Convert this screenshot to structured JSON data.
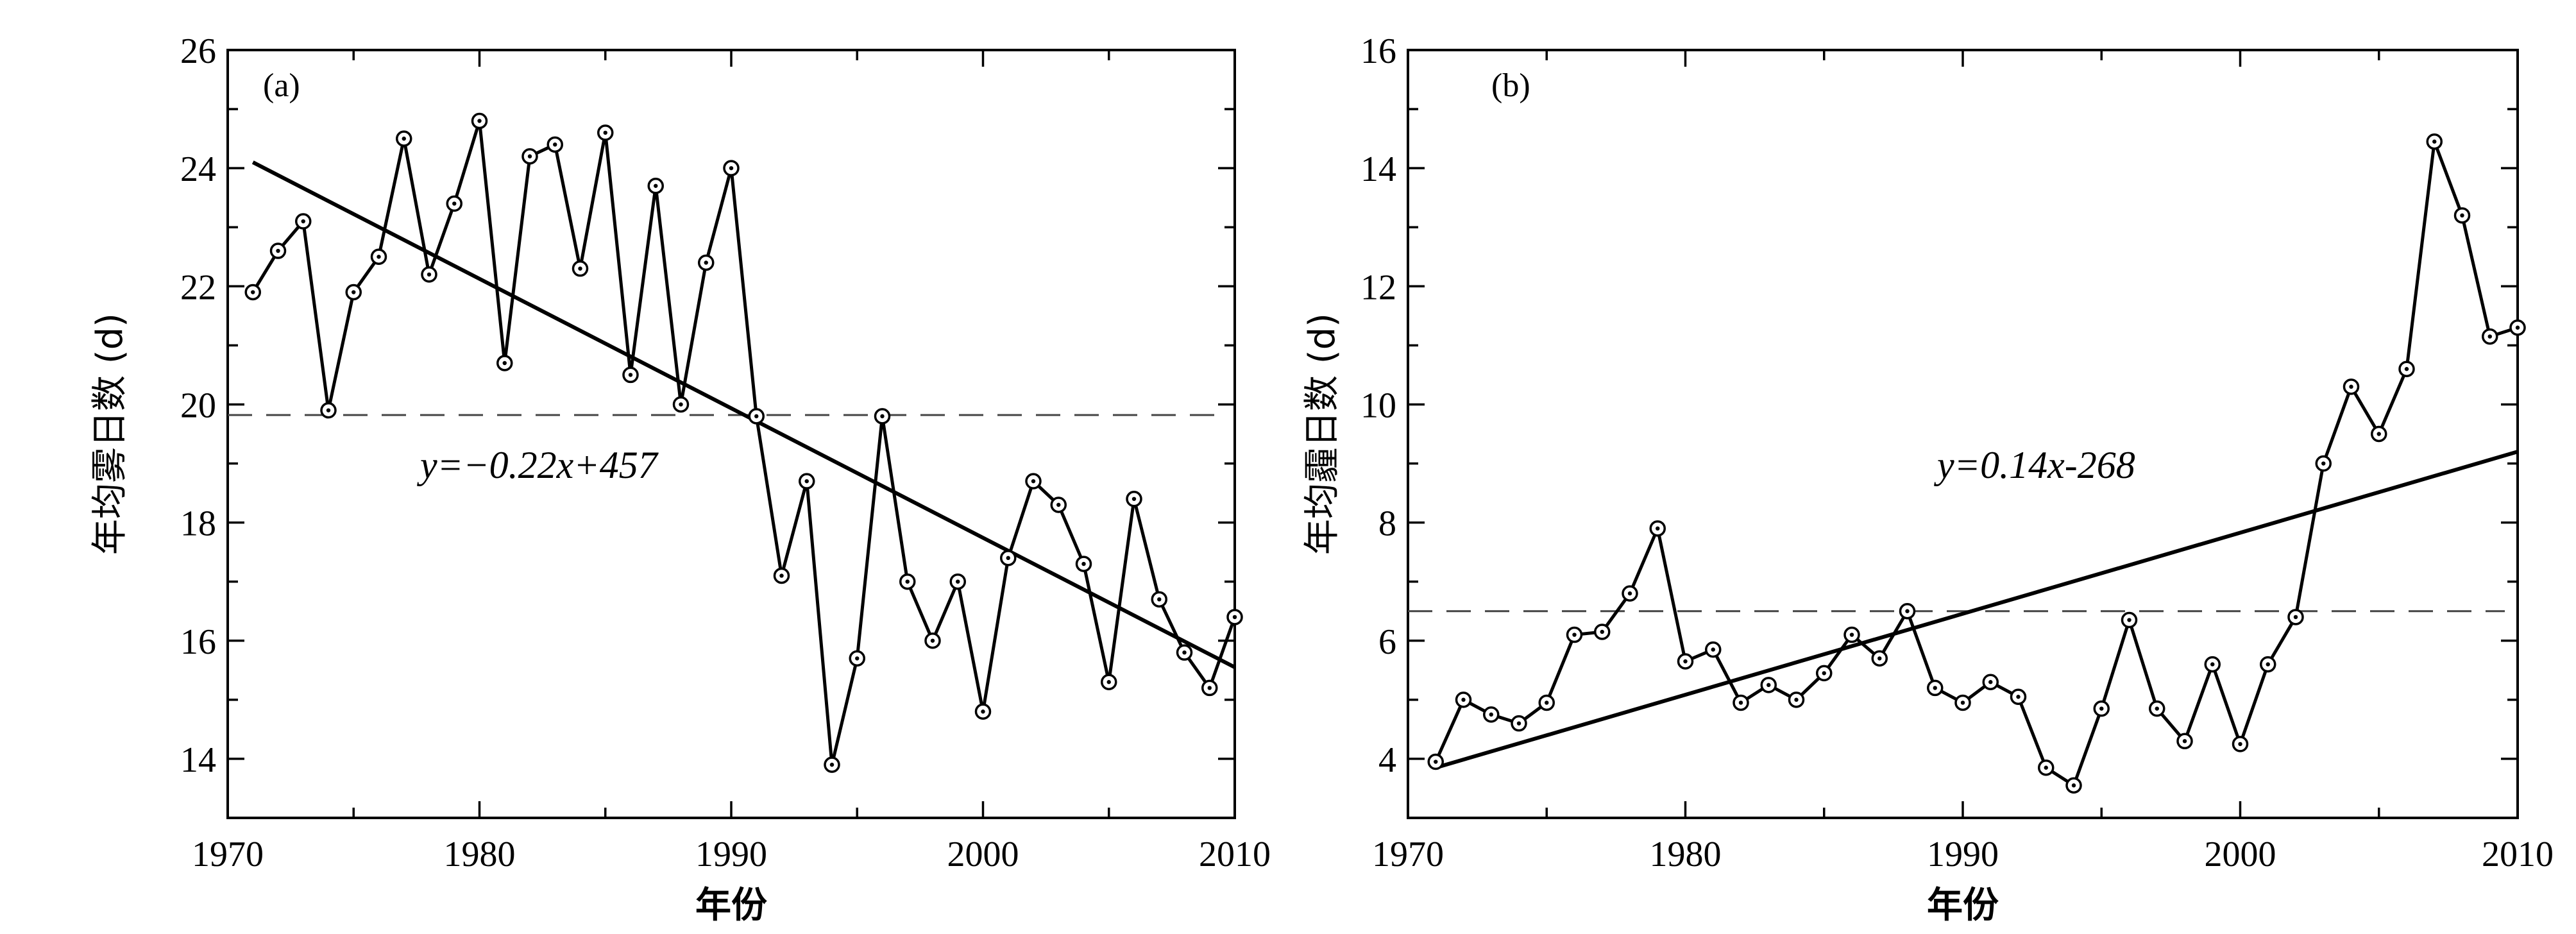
{
  "chart_data": [
    {
      "type": "line",
      "panel_label": "(a)",
      "xlabel": "年份",
      "ylabel": "年均雾日数 (d)",
      "xlim": [
        1970,
        2010
      ],
      "ylim": [
        13,
        26
      ],
      "xticks": [
        1970,
        1980,
        1990,
        2000,
        2010
      ],
      "yticks": [
        14,
        16,
        18,
        20,
        22,
        24,
        26
      ],
      "annotation": "y=−0.22x+457",
      "mean_line": 19.82,
      "trend": {
        "x": [
          1971,
          2010
        ],
        "y": [
          24.1,
          15.55
        ]
      },
      "x": [
        1971,
        1972,
        1973,
        1974,
        1975,
        1976,
        1977,
        1978,
        1979,
        1980,
        1981,
        1982,
        1983,
        1984,
        1985,
        1986,
        1987,
        1988,
        1989,
        1990,
        1991,
        1992,
        1993,
        1994,
        1995,
        1996,
        1997,
        1998,
        1999,
        2000,
        2001,
        2002,
        2003,
        2004,
        2005,
        2006,
        2007,
        2008,
        2009,
        2010
      ],
      "y": [
        21.9,
        22.6,
        23.1,
        19.9,
        21.9,
        22.5,
        24.5,
        22.2,
        23.4,
        24.8,
        20.7,
        24.2,
        24.4,
        22.3,
        24.6,
        20.5,
        23.7,
        20.0,
        22.4,
        24.0,
        19.8,
        17.1,
        18.7,
        13.9,
        15.7,
        19.8,
        17.0,
        16.0,
        17.0,
        14.8,
        17.4,
        18.7,
        18.3,
        17.3,
        15.3,
        18.4,
        16.7,
        15.8,
        15.2,
        16.4
      ]
    },
    {
      "type": "line",
      "panel_label": "(b)",
      "xlabel": "年份",
      "ylabel": "年均霾日数 (d)",
      "xlim": [
        1970,
        2010
      ],
      "ylim": [
        3,
        16
      ],
      "xticks": [
        1970,
        1980,
        1990,
        2000,
        2010
      ],
      "yticks": [
        4,
        6,
        8,
        10,
        12,
        14,
        16
      ],
      "annotation": "y=0.14x-268",
      "mean_line": 6.5,
      "trend": {
        "x": [
          1971,
          2010
        ],
        "y": [
          3.85,
          9.2
        ]
      },
      "x": [
        1971,
        1972,
        1973,
        1974,
        1975,
        1976,
        1977,
        1978,
        1979,
        1980,
        1981,
        1982,
        1983,
        1984,
        1985,
        1986,
        1987,
        1988,
        1989,
        1990,
        1991,
        1992,
        1993,
        1994,
        1995,
        1996,
        1997,
        1998,
        1999,
        2000,
        2001,
        2002,
        2003,
        2004,
        2005,
        2006,
        2007,
        2008,
        2009,
        2010
      ],
      "y": [
        3.95,
        5.0,
        4.75,
        4.6,
        4.95,
        6.1,
        6.15,
        6.8,
        7.9,
        5.65,
        5.85,
        4.95,
        5.25,
        5.0,
        5.45,
        6.1,
        5.7,
        6.5,
        5.2,
        4.95,
        5.3,
        5.05,
        3.85,
        3.55,
        4.85,
        6.35,
        4.85,
        4.3,
        5.6,
        4.25,
        5.6,
        6.4,
        9.0,
        10.3,
        9.5,
        10.6,
        14.45,
        13.2,
        11.15,
        11.3
      ]
    }
  ]
}
